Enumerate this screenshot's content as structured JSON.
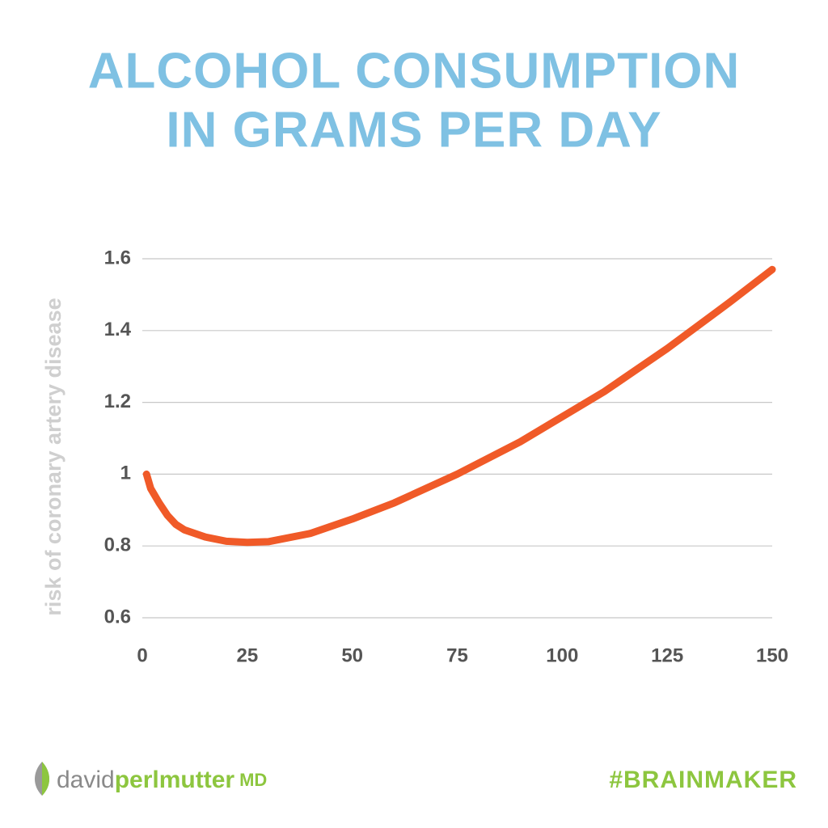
{
  "chart_data": {
    "type": "line",
    "title": [
      "ALCOHOL CONSUMPTION",
      "IN GRAMS PER DAY"
    ],
    "y_label": "risk of coronary artery disease",
    "x": [
      1,
      2,
      4,
      6,
      8,
      10,
      15,
      20,
      25,
      30,
      40,
      50,
      60,
      75,
      90,
      100,
      110,
      125,
      140,
      150
    ],
    "values": [
      1.0,
      0.96,
      0.92,
      0.885,
      0.86,
      0.845,
      0.825,
      0.813,
      0.81,
      0.812,
      0.835,
      0.875,
      0.92,
      1.0,
      1.09,
      1.16,
      1.23,
      1.35,
      1.48,
      1.57
    ],
    "color": "#f05a28",
    "xlim": [
      0,
      150
    ],
    "xticks": [
      0,
      25,
      50,
      75,
      100,
      125,
      150
    ],
    "ylim": [
      0.6,
      1.6
    ],
    "yticks": [
      0.6,
      0.8,
      1,
      1.2,
      1.4,
      1.6
    ],
    "grid": true
  },
  "footer": {
    "logo": [
      "david",
      "perlmutter",
      "MD"
    ],
    "hashtag": "#BRAINMAKER"
  }
}
